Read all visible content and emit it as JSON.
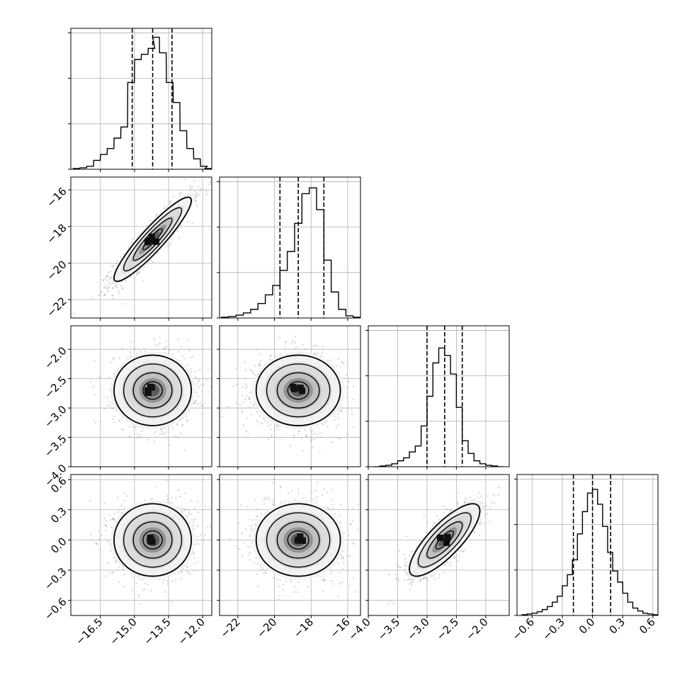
{
  "chart_data": {
    "type": "corner",
    "title": "",
    "parameters": [
      {
        "range": [
          -17.8,
          -11.6
        ],
        "ticks": [
          -16.5,
          -15.0,
          -13.5,
          -12.0
        ],
        "tick_labels": [
          "−16.5",
          "−15.0",
          "−13.5",
          "−12.0"
        ],
        "quantiles": [
          -15.1,
          -14.2,
          -13.35
        ],
        "histogram": {
          "bin_centers": [
            -17.55,
            -17.25,
            -16.95,
            -16.65,
            -16.35,
            -16.05,
            -15.75,
            -15.45,
            -15.15,
            -14.85,
            -14.55,
            -14.25,
            -14.05,
            -13.75,
            -13.45,
            -13.15,
            -12.85,
            -12.55,
            -12.25,
            -11.95,
            -11.75
          ],
          "counts": [
            1,
            2,
            4,
            12,
            20,
            28,
            42,
            57,
            117,
            148,
            155,
            163,
            178,
            157,
            117,
            90,
            52,
            28,
            14,
            4,
            1
          ],
          "ylim": [
            0,
            190
          ]
        }
      },
      {
        "range": [
          -23.0,
          -15.3
        ],
        "ticks": [
          -22,
          -20,
          -18,
          -16
        ],
        "tick_labels": [
          "−22",
          "−20",
          "−18",
          "−16"
        ],
        "quantiles": [
          -19.7,
          -18.7,
          -17.3
        ],
        "histogram": {
          "bin_centers": [
            -22.7,
            -22.3,
            -21.9,
            -21.5,
            -21.1,
            -20.7,
            -20.3,
            -19.9,
            -19.5,
            -19.1,
            -18.7,
            -18.3,
            -17.9,
            -17.5,
            -17.1,
            -16.7,
            -16.3,
            -15.9,
            -15.5
          ],
          "counts": [
            1,
            2,
            4,
            7,
            12,
            20,
            32,
            45,
            66,
            92,
            131,
            172,
            180,
            150,
            80,
            36,
            12,
            3,
            1
          ],
          "ylim": [
            0,
            195
          ]
        }
      },
      {
        "range": [
          -4.0,
          -1.6
        ],
        "ticks": [
          -4.0,
          -3.5,
          -3.0,
          -2.5,
          -2.0
        ],
        "tick_labels": [
          "−4.0",
          "−3.5",
          "−3.0",
          "−2.5",
          "−2.0"
        ],
        "quantiles": [
          -3.0,
          -2.7,
          -2.4
        ],
        "histogram": {
          "bin_centers": [
            -3.85,
            -3.75,
            -3.65,
            -3.55,
            -3.45,
            -3.35,
            -3.25,
            -3.15,
            -3.05,
            -2.95,
            -2.85,
            -2.75,
            -2.65,
            -2.55,
            -2.45,
            -2.35,
            -2.25,
            -2.15,
            -2.05,
            -1.95,
            -1.85,
            -1.75
          ],
          "counts": [
            0,
            1,
            2,
            4,
            8,
            12,
            20,
            28,
            55,
            95,
            140,
            160,
            150,
            125,
            80,
            35,
            18,
            8,
            4,
            2,
            1,
            0
          ],
          "ylim": [
            0,
            190
          ]
        }
      },
      {
        "range": [
          -0.75,
          0.65
        ],
        "ticks": [
          -0.6,
          -0.3,
          0.0,
          0.3,
          0.6
        ],
        "tick_labels": [
          "−0.6",
          "−0.3",
          "0.0",
          "0.3",
          "0.6"
        ],
        "quantiles": [
          -0.19,
          0.0,
          0.18
        ],
        "histogram": {
          "bin_centers": [
            -0.675,
            -0.625,
            -0.575,
            -0.525,
            -0.475,
            -0.425,
            -0.375,
            -0.325,
            -0.275,
            -0.225,
            -0.175,
            -0.125,
            -0.075,
            -0.025,
            0.025,
            0.075,
            0.125,
            0.175,
            0.225,
            0.275,
            0.325,
            0.375,
            0.425,
            0.475,
            0.525,
            0.575,
            0.625
          ],
          "counts": [
            1,
            2,
            3,
            5,
            8,
            12,
            18,
            26,
            40,
            55,
            75,
            110,
            140,
            165,
            170,
            150,
            120,
            85,
            60,
            45,
            30,
            18,
            10,
            6,
            3,
            2,
            1
          ],
          "ylim": [
            0,
            190
          ]
        }
      }
    ],
    "correlations": {
      "1-0": 0.92,
      "2-0": 0.0,
      "2-1": 0.0,
      "3-0": 0.0,
      "3-1": 0.0,
      "3-2": 0.8
    },
    "means": [
      -14.2,
      -18.7,
      -2.7,
      0.0
    ],
    "sigmas": [
      0.85,
      1.15,
      0.3,
      0.18
    ],
    "contour_sigma_levels": [
      0.5,
      1.0,
      1.5,
      2.0
    ],
    "samples_per_panel": 1500,
    "colors": {
      "line": "#000000",
      "grid": "#b0b0b0",
      "points": "#9a9a9a"
    },
    "grid": true,
    "legend": "none"
  }
}
